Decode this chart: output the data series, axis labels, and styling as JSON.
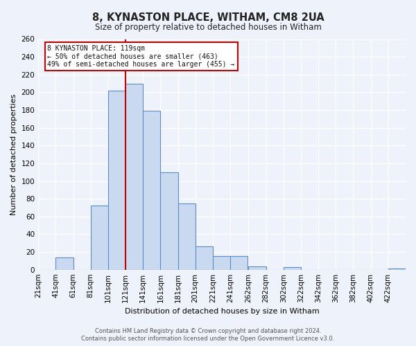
{
  "title": "8, KYNASTON PLACE, WITHAM, CM8 2UA",
  "subtitle": "Size of property relative to detached houses in Witham",
  "xlabel": "Distribution of detached houses by size in Witham",
  "ylabel": "Number of detached properties",
  "bar_labels": [
    "21sqm",
    "41sqm",
    "61sqm",
    "81sqm",
    "101sqm",
    "121sqm",
    "141sqm",
    "161sqm",
    "181sqm",
    "201sqm",
    "221sqm",
    "241sqm",
    "262sqm",
    "282sqm",
    "302sqm",
    "322sqm",
    "342sqm",
    "362sqm",
    "382sqm",
    "402sqm",
    "422sqm"
  ],
  "bar_values": [
    0,
    14,
    0,
    72,
    202,
    210,
    179,
    110,
    75,
    26,
    15,
    15,
    4,
    0,
    3,
    0,
    0,
    0,
    0,
    0,
    1
  ],
  "bar_color": "#c9d9f0",
  "bar_edge_color": "#5b8ec4",
  "ylim": [
    0,
    260
  ],
  "yticks": [
    0,
    20,
    40,
    60,
    80,
    100,
    120,
    140,
    160,
    180,
    200,
    220,
    240,
    260
  ],
  "vline_x": 121,
  "property_line_label": "8 KYNASTON PLACE: 119sqm",
  "annotation_line1": "← 50% of detached houses are smaller (463)",
  "annotation_line2": "49% of semi-detached houses are larger (455) →",
  "annotation_box_color": "#ffffff",
  "annotation_box_edge_color": "#cc0000",
  "vline_color": "#cc0000",
  "footer_line1": "Contains HM Land Registry data © Crown copyright and database right 2024.",
  "footer_line2": "Contains public sector information licensed under the Open Government Licence v3.0.",
  "background_color": "#eef2fa",
  "grid_color": "#ffffff",
  "bin_width": 20
}
